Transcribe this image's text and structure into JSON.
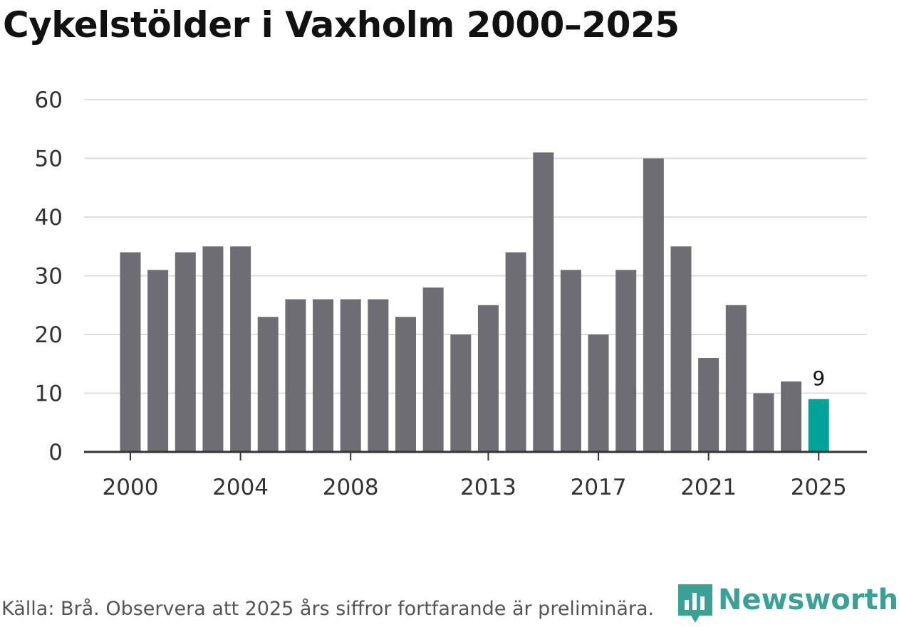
{
  "chart_data": {
    "type": "bar",
    "title": "Cykelstölder i Vaxholm 2000–2025",
    "categories": [
      "2000",
      "2001",
      "2002",
      "2003",
      "2004",
      "2005",
      "2006",
      "2007",
      "2008",
      "2009",
      "2010",
      "2011",
      "2012",
      "2013",
      "2014",
      "2015",
      "2016",
      "2017",
      "2018",
      "2019",
      "2020",
      "2021",
      "2022",
      "2023",
      "2024",
      "2025"
    ],
    "values": [
      34,
      31,
      34,
      35,
      35,
      23,
      26,
      26,
      26,
      26,
      23,
      28,
      20,
      25,
      34,
      51,
      31,
      20,
      31,
      50,
      35,
      16,
      25,
      10,
      12,
      9
    ],
    "x_tick_labels": [
      "2000",
      "2004",
      "2008",
      "2013",
      "2017",
      "2021",
      "2025"
    ],
    "y_ticks": [
      0,
      10,
      20,
      30,
      40,
      50,
      60
    ],
    "ylim": [
      0,
      60
    ],
    "xlabel": "",
    "ylabel": "",
    "grid": true,
    "highlight": {
      "category": "2025",
      "label": "9"
    },
    "colors": {
      "bar": "#6e6d73",
      "highlight": "#00a39a",
      "grid": "#dddddd",
      "axis": "#333333"
    }
  },
  "source_text": "Källa: Brå. Observera att 2025 års siffror fortfarande är preliminära.",
  "logo": {
    "text": "Newsworthy",
    "color": "#3aa197",
    "icon": "bar-chart-icon"
  }
}
